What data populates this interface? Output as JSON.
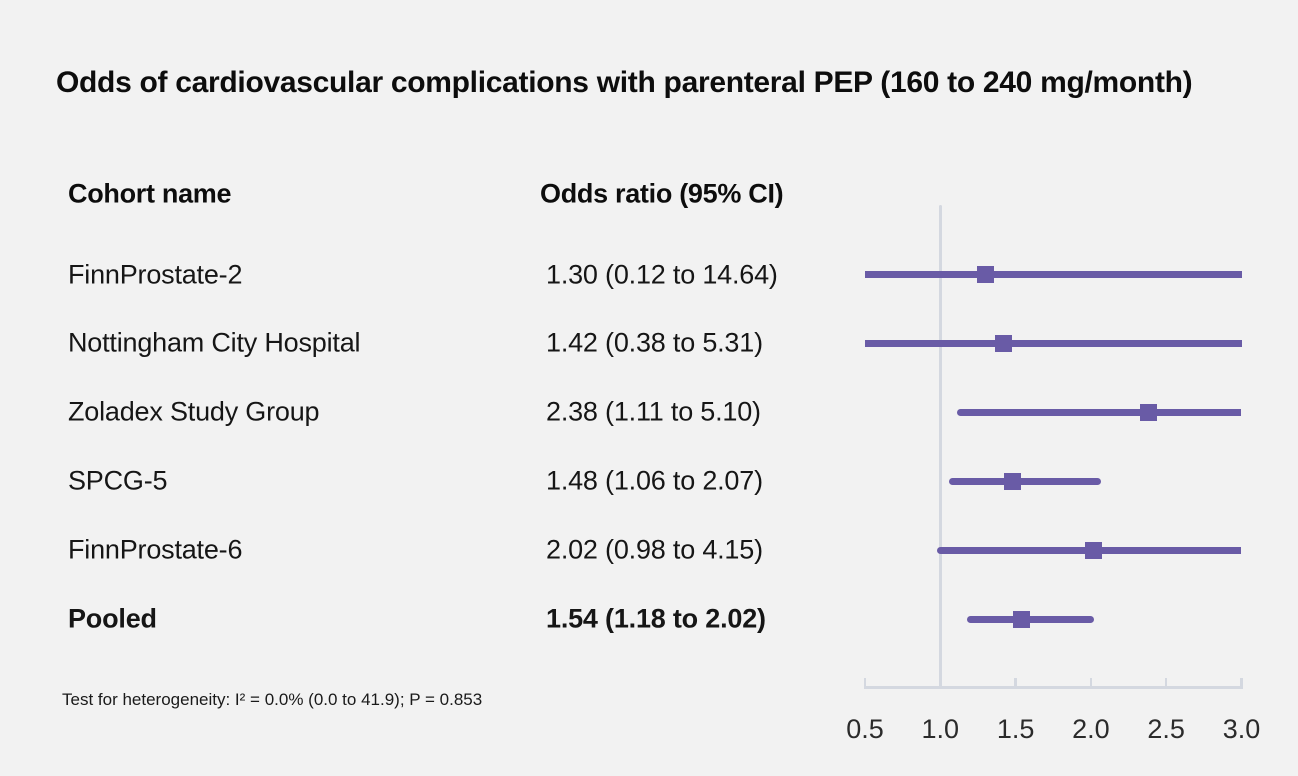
{
  "title": "Odds of cardiovascular complications with parenteral PEP (160 to 240 mg/month)",
  "columns": {
    "cohort": "Cohort name",
    "odds_ratio": "Odds ratio (95% CI)"
  },
  "footnote": "Test for heterogeneity: I² = 0.0% (0.0 to 41.9); P = 0.853",
  "colors": {
    "background": "#f2f2f2",
    "marker": "#695ba6",
    "axis": "#d4d8e0",
    "title_text": "#0d0d0d",
    "body_text": "#161616",
    "tick_text": "#2b2b2b"
  },
  "chart_data": {
    "type": "forest",
    "title": "Odds of cardiovascular complications with parenteral PEP (160 to 240 mg/month)",
    "xlim": [
      0.5,
      3.0
    ],
    "ticks": [
      0.5,
      1.0,
      1.5,
      2.0,
      2.5,
      3.0
    ],
    "tick_labels": [
      "0.5",
      "1.0",
      "1.5",
      "2.0",
      "2.5",
      "3.0"
    ],
    "reference_line": 1.0,
    "grid": false,
    "legend": false,
    "rows": [
      {
        "name": "FinnProstate-2",
        "estimate": 1.3,
        "ci_low": 0.12,
        "ci_high": 14.64,
        "label": "1.30 (0.12 to 14.64)",
        "pooled": false
      },
      {
        "name": "Nottingham City Hospital",
        "estimate": 1.42,
        "ci_low": 0.38,
        "ci_high": 5.31,
        "label": "1.42 (0.38 to 5.31)",
        "pooled": false
      },
      {
        "name": "Zoladex Study Group",
        "estimate": 2.38,
        "ci_low": 1.11,
        "ci_high": 5.1,
        "label": "2.38 (1.11 to 5.10)",
        "pooled": false
      },
      {
        "name": "SPCG-5",
        "estimate": 1.48,
        "ci_low": 1.06,
        "ci_high": 2.07,
        "label": "1.48 (1.06 to 2.07)",
        "pooled": false
      },
      {
        "name": "FinnProstate-6",
        "estimate": 2.02,
        "ci_low": 0.98,
        "ci_high": 4.15,
        "label": "2.02 (0.98 to 4.15)",
        "pooled": false
      },
      {
        "name": "Pooled",
        "estimate": 1.54,
        "ci_low": 1.18,
        "ci_high": 2.02,
        "label": "1.54 (1.18 to 2.02)",
        "pooled": true
      }
    ]
  }
}
